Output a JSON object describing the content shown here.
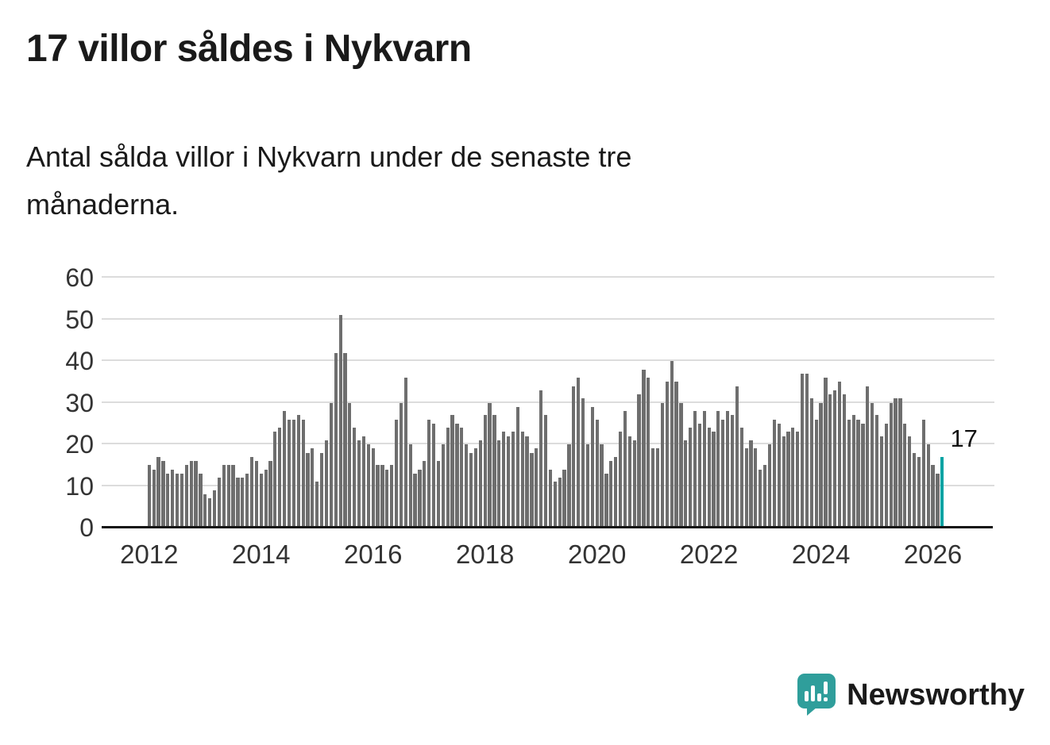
{
  "header": {
    "title": "17 villor såldes i Nykvarn",
    "subtitle": "Antal sålda villor i Nykvarn under de senaste tre månaderna."
  },
  "footer": {
    "brand": "Newsworthy",
    "brand_color": "#2f9e9b",
    "icon": "newsworthy-speech-bubble-chart-icon"
  },
  "chart_data": {
    "type": "bar",
    "title": "17 villor såldes i Nykvarn",
    "subtitle": "Antal sålda villor i Nykvarn under de senaste tre månaderna.",
    "frequency": "monthly",
    "x_start": "2012-01",
    "ylim": [
      0,
      60
    ],
    "yticks": [
      0,
      10,
      20,
      30,
      40,
      50,
      60
    ],
    "xticks": [
      2012,
      2014,
      2016,
      2018,
      2020,
      2022,
      2024,
      2026
    ],
    "grid": "horizontal",
    "bar_color": "#6e6e6e",
    "highlight_color": "#00a3a3",
    "highlight_index": "last",
    "highlight_label": "17",
    "values": [
      15,
      14,
      17,
      16,
      13,
      14,
      13,
      13,
      15,
      16,
      16,
      13,
      8,
      7,
      9,
      12,
      15,
      15,
      15,
      12,
      12,
      13,
      17,
      16,
      13,
      14,
      16,
      23,
      24,
      28,
      26,
      26,
      27,
      26,
      18,
      19,
      11,
      18,
      21,
      30,
      42,
      51,
      42,
      30,
      24,
      21,
      22,
      20,
      19,
      15,
      15,
      14,
      15,
      26,
      30,
      36,
      20,
      13,
      14,
      16,
      26,
      25,
      16,
      20,
      24,
      27,
      25,
      24,
      20,
      18,
      19,
      21,
      27,
      30,
      27,
      21,
      23,
      22,
      23,
      29,
      23,
      22,
      18,
      19,
      33,
      27,
      14,
      11,
      12,
      14,
      20,
      34,
      36,
      31,
      20,
      29,
      26,
      20,
      13,
      16,
      17,
      23,
      28,
      22,
      21,
      32,
      38,
      36,
      19,
      19,
      30,
      35,
      40,
      35,
      30,
      21,
      24,
      28,
      25,
      28,
      24,
      23,
      28,
      26,
      28,
      27,
      34,
      24,
      19,
      21,
      19,
      14,
      15,
      20,
      26,
      25,
      22,
      23,
      24,
      23,
      37,
      37,
      31,
      26,
      30,
      36,
      32,
      33,
      35,
      32,
      26,
      27,
      26,
      25,
      34,
      30,
      27,
      22,
      25,
      30,
      31,
      31,
      25,
      22,
      18,
      17,
      26,
      20,
      15,
      13,
      17
    ]
  }
}
